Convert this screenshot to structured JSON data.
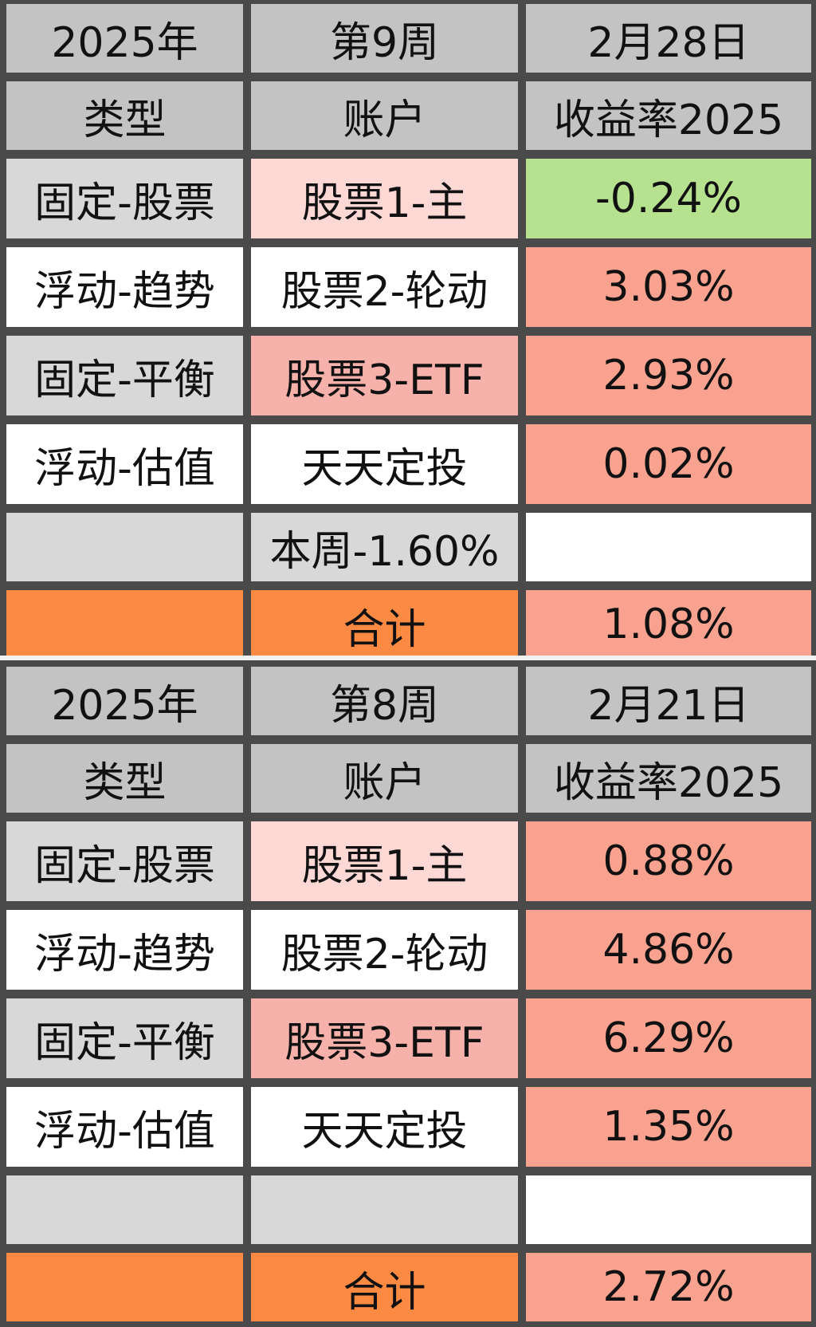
{
  "tables": [
    {
      "year": "2025年",
      "week": "第9周",
      "date": "2月28日",
      "col_type": "类型",
      "col_account": "账户",
      "col_return": "收益率2025",
      "rows": [
        {
          "type": "固定-股票",
          "account": "股票1-主",
          "return": "-0.24%"
        },
        {
          "type": "浮动-趋势",
          "account": "股票2-轮动",
          "return": "3.03%"
        },
        {
          "type": "固定-平衡",
          "account": "股票3-ETF",
          "return": "2.93%"
        },
        {
          "type": "浮动-估值",
          "account": "天天定投",
          "return": "0.02%"
        }
      ],
      "weekly": "本周-1.60%",
      "total_label": "合计",
      "total": "1.08%"
    },
    {
      "year": "2025年",
      "week": "第8周",
      "date": "2月21日",
      "col_type": "类型",
      "col_account": "账户",
      "col_return": "收益率2025",
      "rows": [
        {
          "type": "固定-股票",
          "account": "股票1-主",
          "return": "0.88%"
        },
        {
          "type": "浮动-趋势",
          "account": "股票2-轮动",
          "return": "4.86%"
        },
        {
          "type": "固定-平衡",
          "account": "股票3-ETF",
          "return": "6.29%"
        },
        {
          "type": "浮动-估值",
          "account": "天天定投",
          "return": "1.35%"
        }
      ],
      "weekly": "",
      "total_label": "合计",
      "total": "2.72%"
    }
  ],
  "colors": {
    "header": "#c3c3c3",
    "negative_return": "#b6e290",
    "positive_return": "#f9a28f",
    "total_row": "#fd8a42"
  }
}
